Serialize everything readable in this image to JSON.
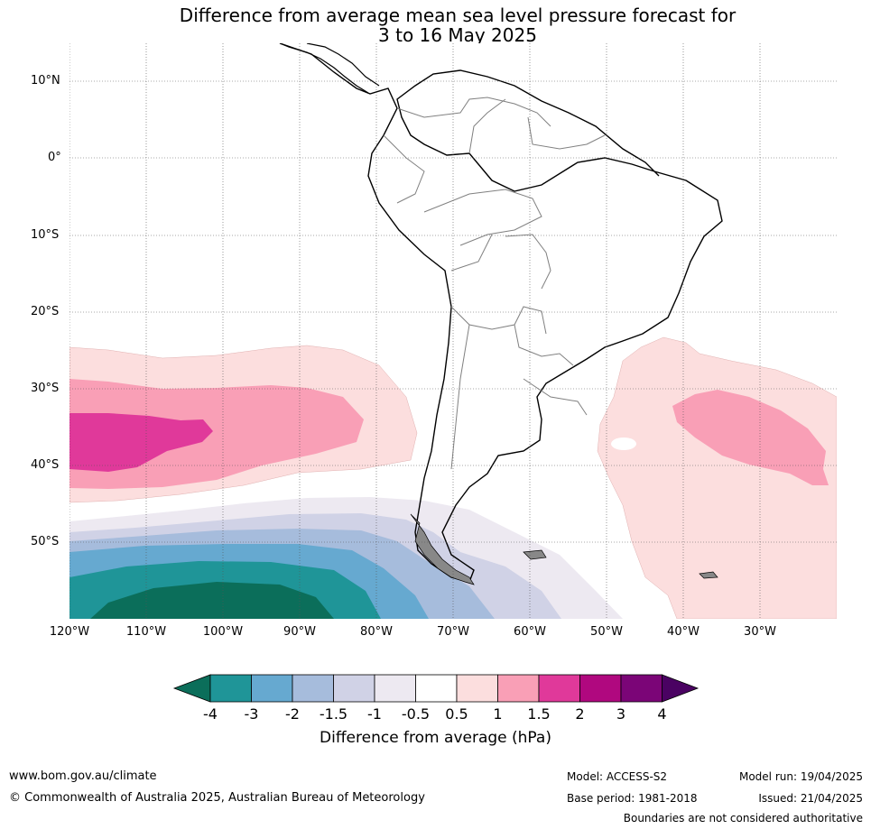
{
  "title": {
    "line1": "Difference from average mean sea level pressure forecast for",
    "line2": "3 to 16 May 2025"
  },
  "axes": {
    "latitudes": [
      "10°N",
      "0°",
      "10°S",
      "20°S",
      "30°S",
      "40°S",
      "50°S"
    ],
    "longitudes": [
      "120°W",
      "110°W",
      "100°W",
      "90°W",
      "80°W",
      "70°W",
      "60°W",
      "50°W",
      "40°W",
      "30°W"
    ],
    "lon_range_deg": [
      -120,
      -20
    ],
    "lat_range_deg": [
      -60,
      15
    ]
  },
  "colorbar": {
    "label": "Difference from average (hPa)",
    "ticks": [
      "-4",
      "-3",
      "-2",
      "-1.5",
      "-1",
      "-0.5",
      "0.5",
      "1",
      "1.5",
      "2",
      "3",
      "4"
    ],
    "colors": [
      "#0b6e5a",
      "#1f9598",
      "#66a9d0",
      "#a6bcdc",
      "#d0d2e6",
      "#ede9f1",
      "#ffffff",
      "#fcdede",
      "#f99fb6",
      "#e0399a",
      "#b0087f",
      "#7b0577",
      "#4a0262"
    ]
  },
  "footer": {
    "website": "www.bom.gov.au/climate",
    "copyright": "© Commonwealth of Australia 2025, Australian Bureau of Meteorology",
    "model": "Model: ACCESS-S2",
    "base_period": "Base period: 1981-2018",
    "model_run": "Model run: 19/04/2025",
    "issued": "Issued: 21/04/2025",
    "disclaimer": "Boundaries are not considered authoritative"
  }
}
